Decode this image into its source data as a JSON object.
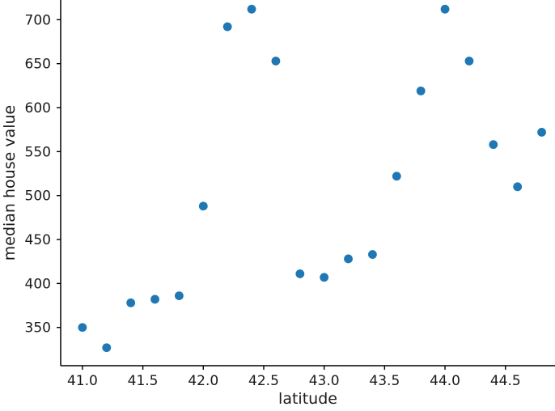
{
  "figure": {
    "background": "#ffffff"
  },
  "chart_data": {
    "type": "scatter",
    "title": "",
    "xlabel": "latitude",
    "ylabel": "median house value",
    "x": [
      41.0,
      41.2,
      41.4,
      41.6,
      41.8,
      42.0,
      42.2,
      42.4,
      42.6,
      42.8,
      43.0,
      43.2,
      43.4,
      43.6,
      43.8,
      44.0,
      44.2,
      44.4,
      44.6,
      44.8
    ],
    "y": [
      350,
      327,
      378,
      382,
      386,
      488,
      692,
      712,
      653,
      411,
      407,
      428,
      433,
      522,
      619,
      712,
      653,
      558,
      510,
      572
    ],
    "xlim": [
      40.82,
      44.91
    ],
    "ylim": [
      306.5,
      722.4
    ],
    "x_ticks": [
      41.0,
      41.5,
      42.0,
      42.5,
      43.0,
      43.5,
      44.0,
      44.5
    ],
    "x_tick_labels": [
      "41.0",
      "41.5",
      "42.0",
      "42.5",
      "43.0",
      "43.5",
      "44.0",
      "44.5"
    ],
    "y_ticks": [
      350,
      400,
      450,
      500,
      550,
      600,
      650,
      700
    ],
    "y_tick_labels": [
      "350",
      "400",
      "450",
      "500",
      "550",
      "600",
      "650",
      "700"
    ],
    "marker_color": "#1f77b4",
    "marker_radius": 5.4,
    "axis_color": "#000000",
    "grid": false,
    "legend": null
  }
}
